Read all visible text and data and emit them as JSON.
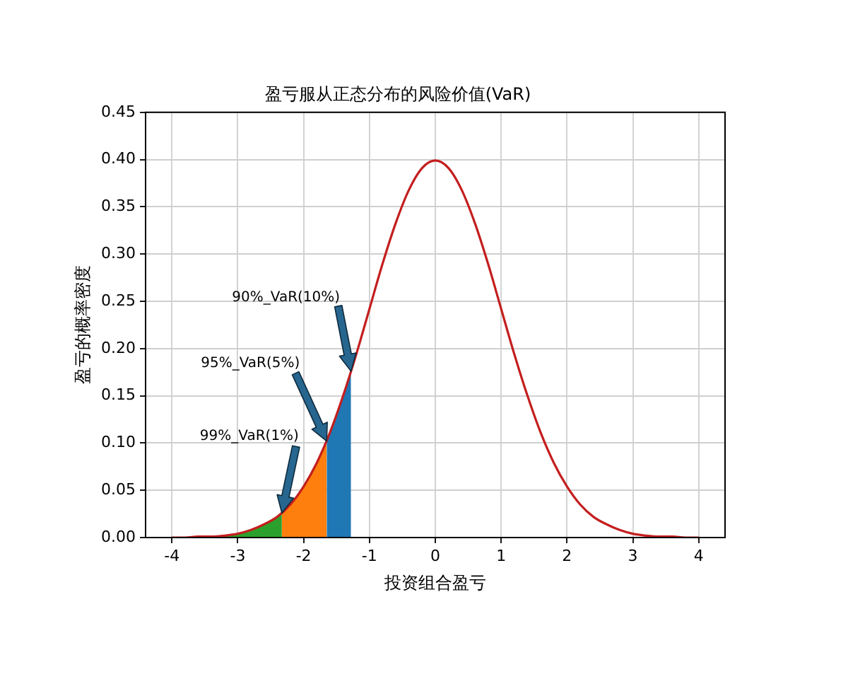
{
  "chart_data": {
    "type": "line",
    "title": "盈亏服从正态分布的风险价值(VaR)",
    "xlabel": "投资组合盈亏",
    "ylabel": "盈亏的概率密度",
    "xlim": [
      -4.4,
      4.4
    ],
    "ylim": [
      0,
      0.45
    ],
    "xticks": [
      -4,
      -3,
      -2,
      -1,
      0,
      1,
      2,
      3,
      4
    ],
    "yticks": [
      {
        "value": 0,
        "label": "0.00"
      },
      {
        "value": 0.05,
        "label": "0.05"
      },
      {
        "value": 0.1,
        "label": "0.10"
      },
      {
        "value": 0.15,
        "label": "0.15"
      },
      {
        "value": 0.2,
        "label": "0.20"
      },
      {
        "value": 0.25,
        "label": "0.25"
      },
      {
        "value": 0.3,
        "label": "0.30"
      },
      {
        "value": 0.35,
        "label": "0.35"
      },
      {
        "value": 0.4,
        "label": "0.40"
      },
      {
        "value": 0.45,
        "label": "0.45"
      }
    ],
    "grid": true,
    "series": [
      {
        "type": "line",
        "color": "#c41e1e",
        "x": [
          -4,
          -3.8,
          -3.6,
          -3.4,
          -3.2,
          -3,
          -2.8,
          -2.6,
          -2.4,
          -2.2,
          -2,
          -1.8,
          -1.6,
          -1.4,
          -1.2,
          -1,
          -0.8,
          -0.6,
          -0.4,
          -0.2,
          0,
          0.2,
          0.4,
          0.6,
          0.8,
          1,
          1.2,
          1.4,
          1.6,
          1.8,
          2,
          2.2,
          2.4,
          2.6,
          2.8,
          3,
          3.2,
          3.4,
          3.6,
          3.8,
          4
        ],
        "values": [
          0,
          0,
          0.001,
          0.001,
          0.002,
          0.004,
          0.008,
          0.014,
          0.022,
          0.035,
          0.054,
          0.079,
          0.111,
          0.15,
          0.194,
          0.242,
          0.29,
          0.333,
          0.368,
          0.391,
          0.399,
          0.391,
          0.368,
          0.333,
          0.29,
          0.242,
          0.194,
          0.15,
          0.111,
          0.079,
          0.054,
          0.035,
          0.022,
          0.014,
          0.008,
          0.004,
          0.002,
          0.001,
          0.001,
          0,
          0
        ]
      },
      {
        "type": "area",
        "color": "#2ca02c",
        "x": [
          -4,
          -3.6,
          -3.2,
          -2.8,
          -2.6,
          -2.4,
          -2.33
        ],
        "values": [
          0,
          0.001,
          0.002,
          0.008,
          0.014,
          0.022,
          0.026
        ]
      },
      {
        "type": "area",
        "color": "#ff7f0e",
        "x": [
          -2.33,
          -2.2,
          -2,
          -1.8,
          -1.65
        ],
        "values": [
          0.026,
          0.035,
          0.054,
          0.079,
          0.102
        ]
      },
      {
        "type": "area",
        "color": "#1f77b4",
        "x": [
          -1.65,
          -1.5,
          -1.4,
          -1.28
        ],
        "values": [
          0.102,
          0.13,
          0.15,
          0.176
        ]
      }
    ],
    "annotations": [
      "90%_VaR(10%)",
      "95%_VaR(5%)",
      "99%_VaR(1%)"
    ]
  }
}
